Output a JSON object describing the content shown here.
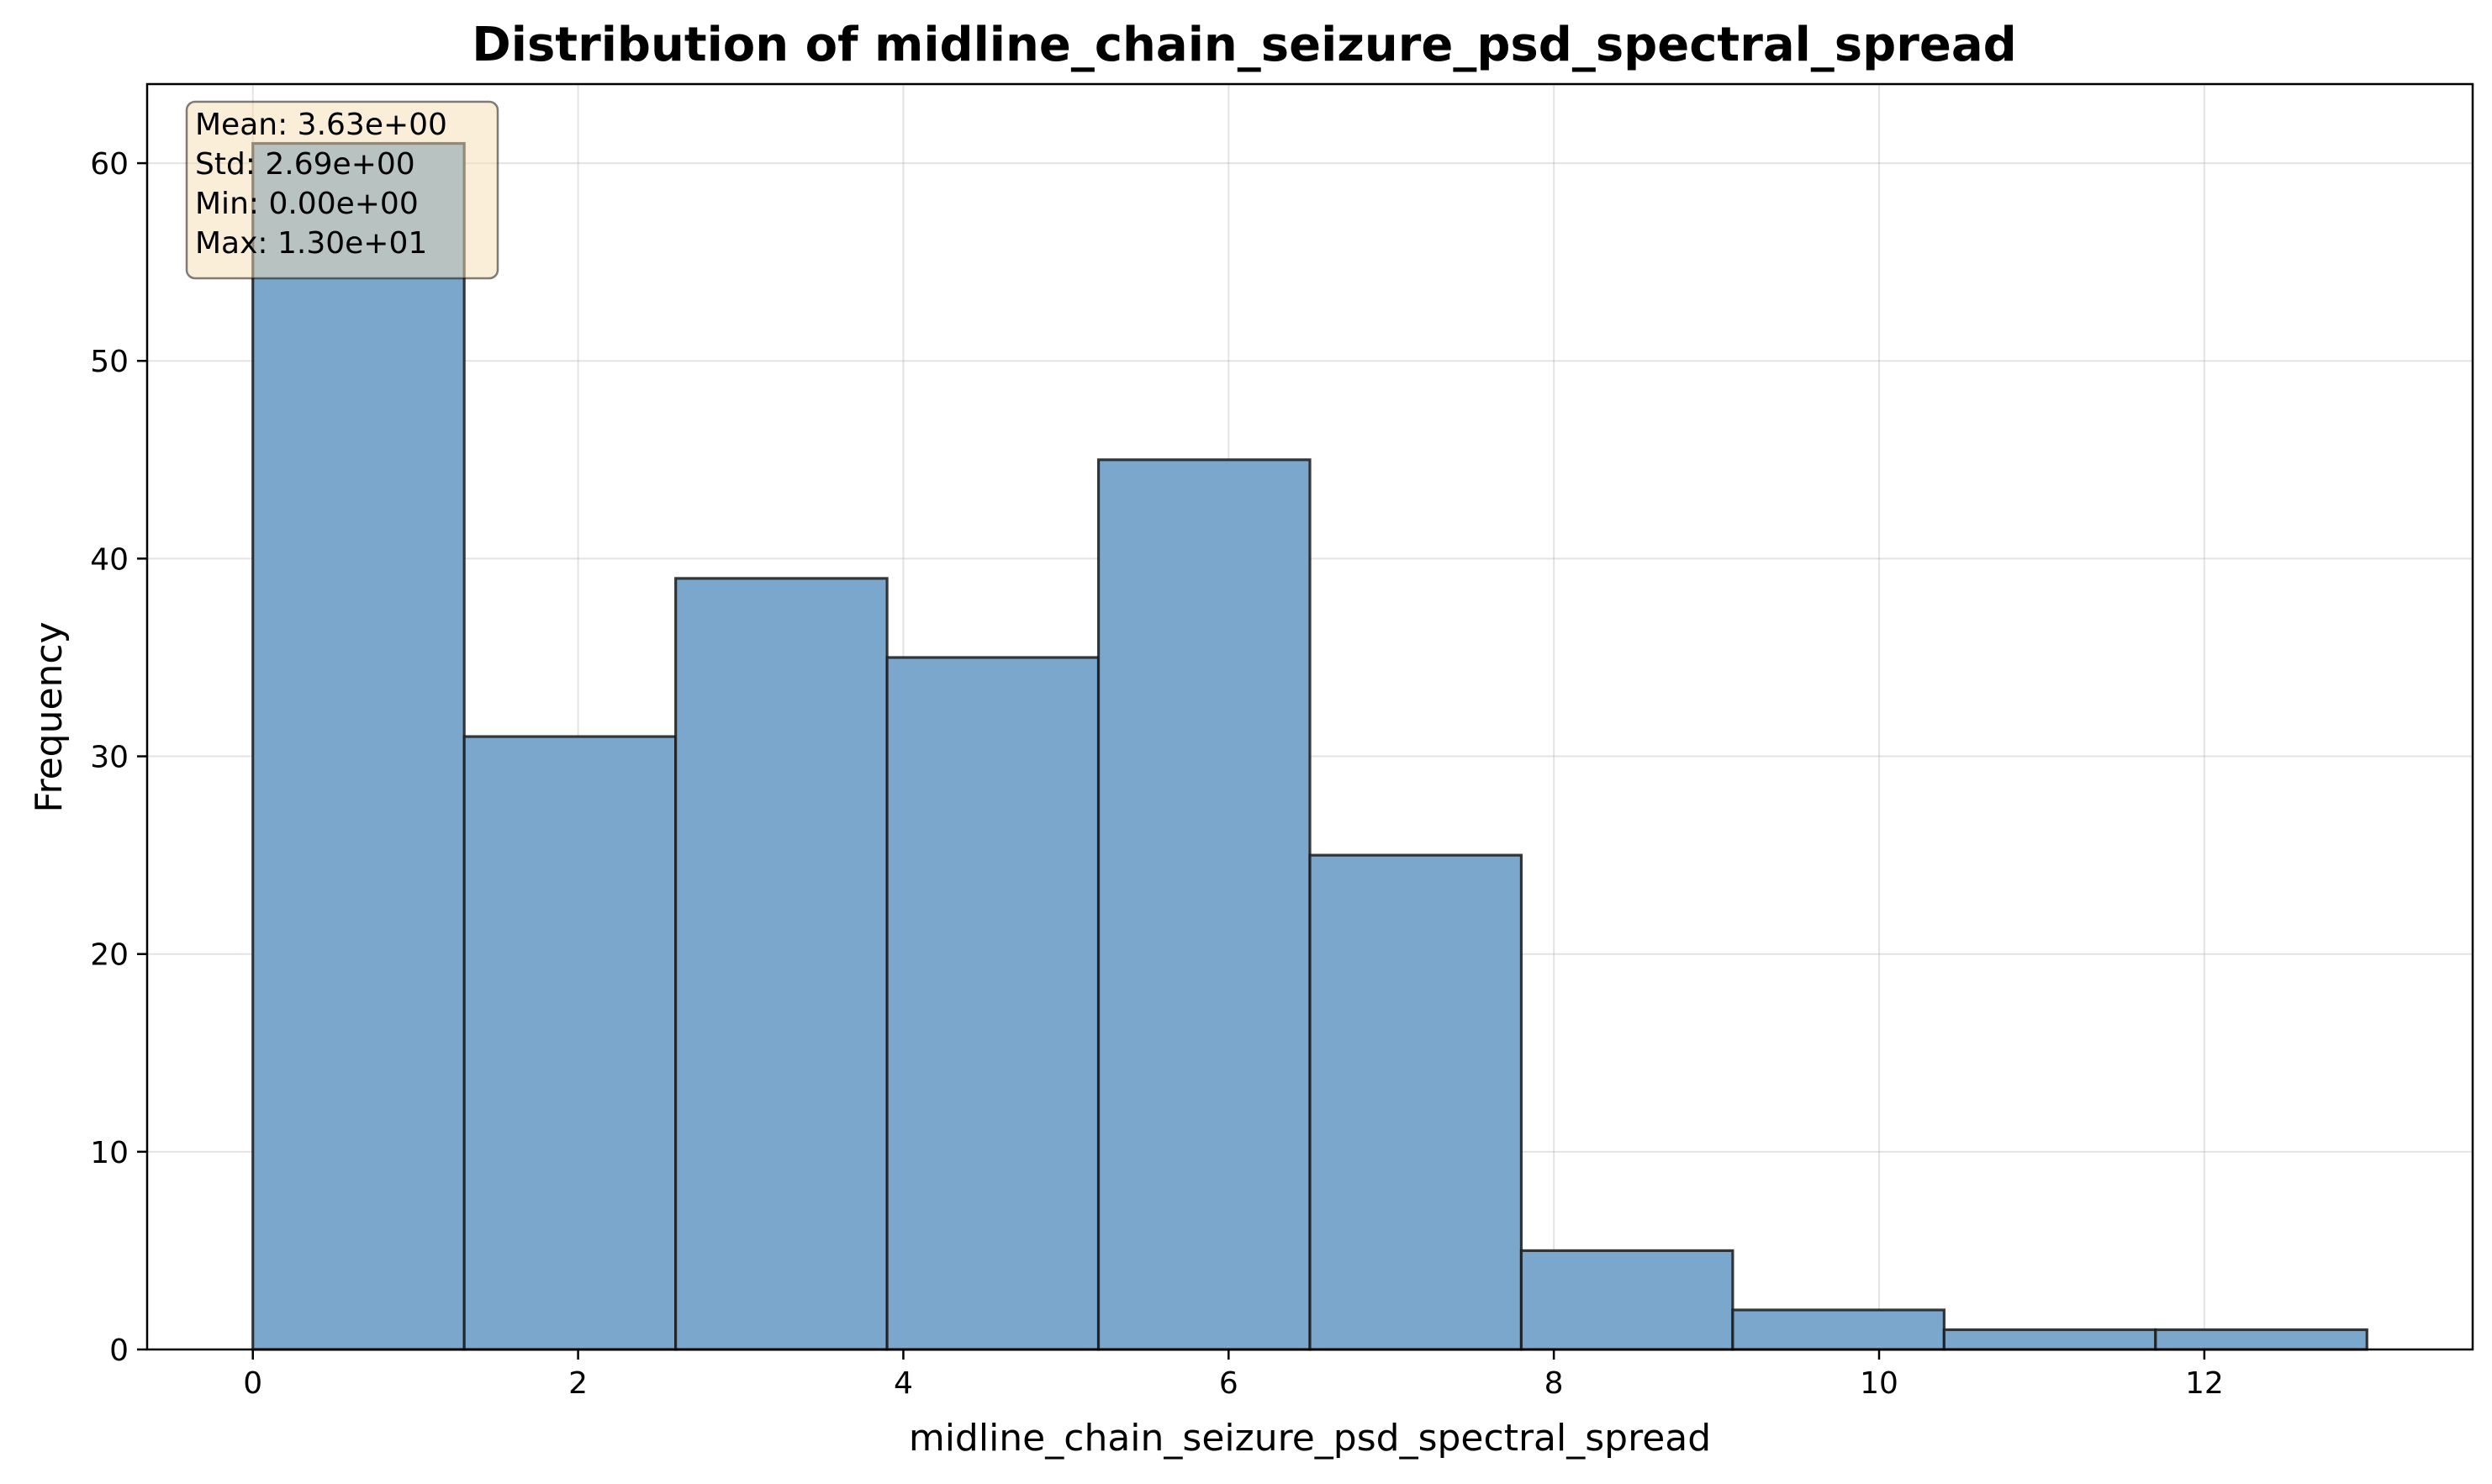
{
  "chart_data": {
    "type": "bar",
    "title": "Distribution of midline_chain_seizure_psd_spectral_spread",
    "xlabel": "midline_chain_seizure_psd_spectral_spread",
    "ylabel": "Frequency",
    "xlim": [
      -0.65,
      13.65
    ],
    "ylim": [
      0,
      64
    ],
    "x_ticks": [
      0,
      2,
      4,
      6,
      8,
      10,
      12
    ],
    "y_ticks": [
      0,
      10,
      20,
      30,
      40,
      50,
      60
    ],
    "bin_edges": [
      0,
      1.3,
      2.6,
      3.9,
      5.2,
      6.5,
      7.8,
      9.1,
      10.4,
      11.7,
      13.0
    ],
    "values": [
      61,
      31,
      39,
      35,
      45,
      25,
      5,
      2,
      1,
      1
    ],
    "bar_color": "#7ba7cc",
    "edge_color": "#1a1a1a",
    "grid": true,
    "stats_box": {
      "lines": [
        "Mean: 3.63e+00",
        "Std: 2.69e+00",
        "Min: 0.00e+00",
        "Max: 1.30e+01"
      ],
      "placement": "top-left",
      "fill": "#f5deb3"
    }
  }
}
